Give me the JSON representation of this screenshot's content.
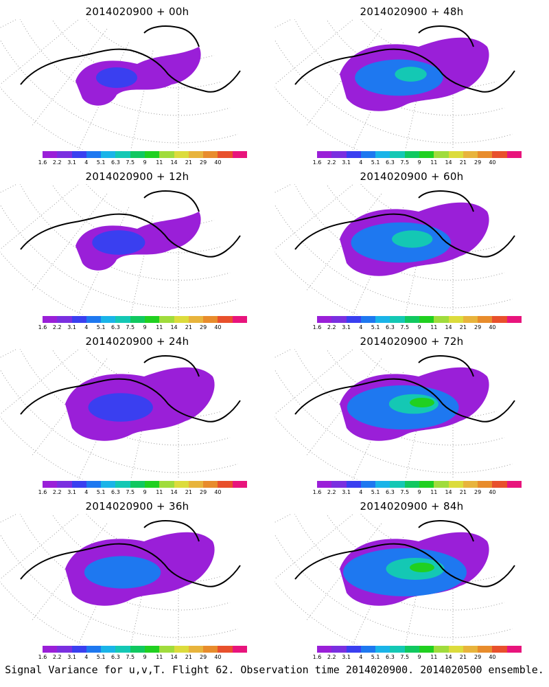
{
  "panels": [
    {
      "title": "2014020900 + 00h",
      "lead": "00h"
    },
    {
      "title": "2014020900 + 48h",
      "lead": "48h"
    },
    {
      "title": "2014020900 + 12h",
      "lead": "12h"
    },
    {
      "title": "2014020900 + 60h",
      "lead": "60h"
    },
    {
      "title": "2014020900 + 24h",
      "lead": "24h"
    },
    {
      "title": "2014020900 + 72h",
      "lead": "72h"
    },
    {
      "title": "2014020900 + 36h",
      "lead": "36h"
    },
    {
      "title": "2014020900 + 84h",
      "lead": "84h"
    }
  ],
  "colorbar": {
    "labels": [
      "1.6",
      "2.2",
      "3.1",
      "4",
      "5.1",
      "6.3",
      "7.5",
      "9",
      "11",
      "14",
      "21",
      "29",
      "40"
    ],
    "colors": [
      "#9a1fd8",
      "#7a2fe0",
      "#3a3ff0",
      "#1e78f0",
      "#1ab4e8",
      "#14c8b4",
      "#10c860",
      "#20d020",
      "#a0dc3c",
      "#dcdc3c",
      "#e8b43c",
      "#e88c2c",
      "#e8502c",
      "#e8147c"
    ]
  },
  "caption": "Signal Variance for u,v,T. Flight 62. Observation time 2014020900. 2014020500 ensemble."
}
